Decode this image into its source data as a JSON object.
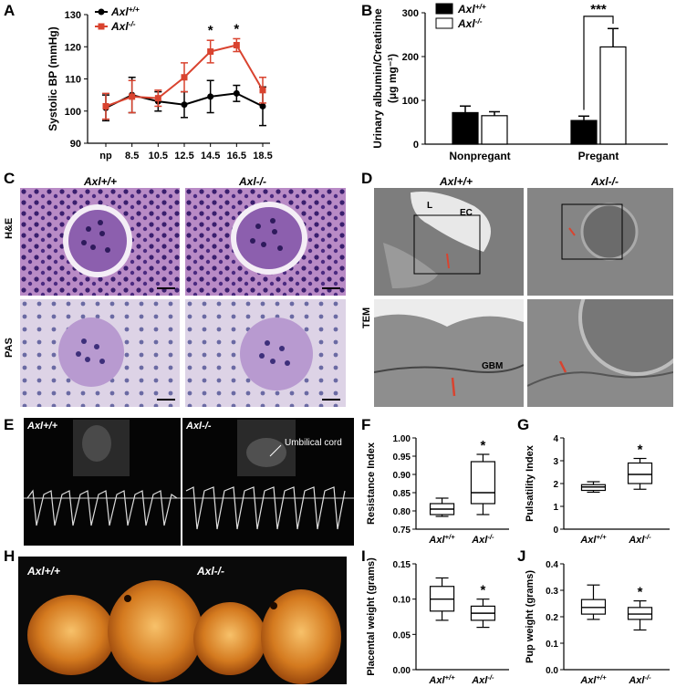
{
  "panels": [
    "A",
    "B",
    "C",
    "D",
    "E",
    "F",
    "G",
    "H",
    "I",
    "J"
  ],
  "genotypes": {
    "wt": "Axl+/+",
    "ko": "Axl-/-"
  },
  "micrograph_labels": {
    "he": "H&E",
    "pas": "PAS",
    "tem": "TEM",
    "lumen": "L",
    "endothelial_cell": "EC",
    "gbm": "GBM",
    "umbilical_cord": "Umbilical cord"
  },
  "colors": {
    "wt": "#000000",
    "ko": "#d9432f",
    "photo_bg": "#0a0a0a"
  },
  "chart_data": [
    {
      "panel": "A",
      "type": "line",
      "ylabel": "Systolic BP (mmHg)",
      "xlabel": "",
      "categories": [
        "np",
        "8.5",
        "10.5",
        "12.5",
        "14.5",
        "16.5",
        "18.5"
      ],
      "ylim": [
        90,
        130
      ],
      "yticks": [
        90,
        100,
        110,
        120,
        130
      ],
      "series": [
        {
          "name": "Axl+/+",
          "values": [
            101,
            105,
            103,
            102,
            104.5,
            105.5,
            101.5
          ],
          "errors": [
            4,
            5.5,
            3,
            4,
            5,
            2.5,
            6
          ]
        },
        {
          "name": "Axl-/-",
          "values": [
            101.5,
            104.5,
            104,
            110.5,
            118.5,
            120.5,
            106.5
          ],
          "errors": [
            4,
            5,
            2.5,
            4.5,
            3.5,
            2,
            4
          ]
        }
      ],
      "annotations": [
        {
          "at": "14.5",
          "text": "*"
        },
        {
          "at": "16.5",
          "text": "*"
        }
      ],
      "legend": "top-left"
    },
    {
      "panel": "B",
      "type": "bar",
      "ylabel": "Urinary albumin/Creatinine",
      "ylabel2": "(μg mg⁻¹)",
      "categories": [
        "Nonpregant",
        "Pregant"
      ],
      "ylim": [
        0,
        300
      ],
      "yticks": [
        0,
        100,
        200,
        300
      ],
      "series": [
        {
          "name": "Axl+/+",
          "values": [
            72,
            54
          ],
          "errors": [
            15,
            10
          ]
        },
        {
          "name": "Axl-/-",
          "values": [
            65,
            222
          ],
          "errors": [
            9,
            42
          ]
        }
      ],
      "annotations": [
        {
          "text": "***"
        }
      ],
      "legend": "top-left"
    },
    {
      "panel": "F",
      "type": "box",
      "ylabel": "Resistance Index",
      "categories": [
        "Axl+/+",
        "Axl-/-"
      ],
      "ylim": [
        0.75,
        1.0
      ],
      "yticks": [
        0.75,
        0.8,
        0.85,
        0.9,
        0.95,
        1.0
      ],
      "boxes": [
        {
          "min": 0.785,
          "q1": 0.79,
          "median": 0.805,
          "q3": 0.82,
          "max": 0.835
        },
        {
          "min": 0.79,
          "q1": 0.82,
          "median": 0.85,
          "q3": 0.935,
          "max": 0.955
        }
      ],
      "annotations": [
        {
          "at": "Axl-/-",
          "text": "*"
        }
      ]
    },
    {
      "panel": "G",
      "type": "box",
      "ylabel": "Pulsatility Index",
      "categories": [
        "Axl+/+",
        "Axl-/-"
      ],
      "ylim": [
        0,
        4
      ],
      "yticks": [
        0,
        1,
        2,
        3,
        4
      ],
      "boxes": [
        {
          "min": 1.62,
          "q1": 1.7,
          "median": 1.85,
          "q3": 1.95,
          "max": 2.08
        },
        {
          "min": 1.75,
          "q1": 2.0,
          "median": 2.4,
          "q3": 2.9,
          "max": 3.1
        }
      ],
      "annotations": [
        {
          "at": "Axl-/-",
          "text": "*"
        }
      ]
    },
    {
      "panel": "I",
      "type": "box",
      "ylabel": "Placental weight (grams)",
      "categories": [
        "Axl+/+",
        "Axl-/-"
      ],
      "ylim": [
        0,
        0.15
      ],
      "yticks": [
        0.0,
        0.05,
        0.1,
        0.15
      ],
      "boxes": [
        {
          "min": 0.07,
          "q1": 0.083,
          "median": 0.1,
          "q3": 0.118,
          "max": 0.13
        },
        {
          "min": 0.06,
          "q1": 0.07,
          "median": 0.08,
          "q3": 0.09,
          "max": 0.1
        }
      ],
      "annotations": [
        {
          "at": "Axl-/-",
          "text": "*"
        }
      ]
    },
    {
      "panel": "J",
      "type": "box",
      "ylabel": "Pup weight (grams)",
      "categories": [
        "Axl+/+",
        "Axl-/-"
      ],
      "ylim": [
        0,
        0.4
      ],
      "yticks": [
        0.0,
        0.1,
        0.2,
        0.3,
        0.4
      ],
      "boxes": [
        {
          "min": 0.19,
          "q1": 0.21,
          "median": 0.235,
          "q3": 0.265,
          "max": 0.32
        },
        {
          "min": 0.15,
          "q1": 0.19,
          "median": 0.21,
          "q3": 0.235,
          "max": 0.26
        }
      ],
      "annotations": [
        {
          "at": "Axl-/-",
          "text": "*"
        }
      ]
    }
  ]
}
